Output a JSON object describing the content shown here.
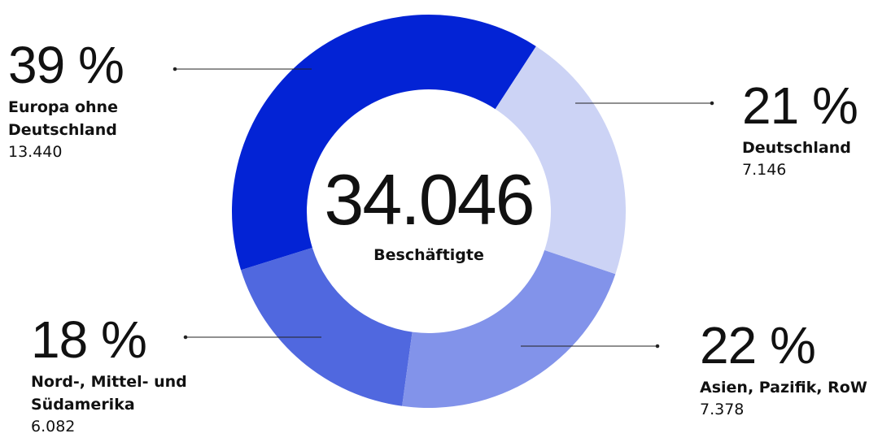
{
  "chart_data": {
    "type": "donut",
    "categories": [
      "Deutschland",
      "Asien, Pazifik, RoW",
      "Nord-, Mittel- und Südamerika",
      "Europa ohne Deutschland"
    ],
    "values": [
      21,
      22,
      18,
      39
    ],
    "value_labels": [
      "21 %",
      "22 %",
      "18 %",
      "39 %"
    ],
    "employee_counts": [
      "7.146",
      "7.378",
      "6.082",
      "13.440"
    ],
    "colors": [
      "#ccd3f5",
      "#8293ea",
      "#5068df",
      "#0323d5"
    ],
    "center_text": "34.046",
    "center_label": "Beschäftigte"
  }
}
